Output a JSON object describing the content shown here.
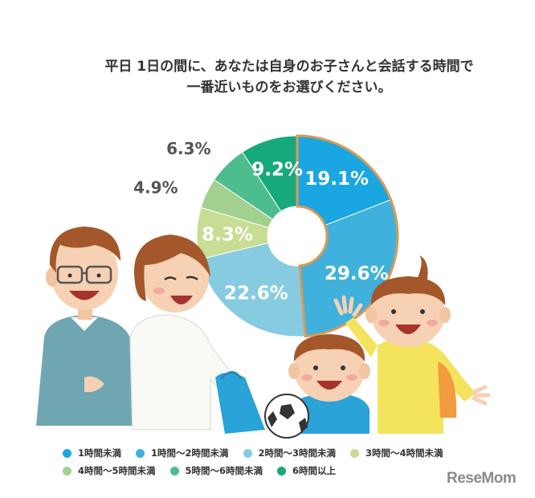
{
  "question": {
    "line1": "平日 1日の間に、あなたは自身のお子さんと会話する時間で",
    "line2": "一番近いものをお選びください。"
  },
  "chart_data": {
    "type": "pie",
    "categories": [
      "1時間未満",
      "1時間～2時間未満",
      "2時間～3時間未満",
      "3時間～4時間未満",
      "4時間～5時間未満",
      "5時間～6時間未満",
      "6時間以上"
    ],
    "values": [
      19.1,
      29.6,
      22.6,
      8.3,
      4.9,
      6.3,
      9.2
    ],
    "value_labels": [
      "19.1%",
      "29.6%",
      "22.6%",
      "8.3%",
      "4.9%",
      "6.3%",
      "9.2%"
    ],
    "colors": [
      "#1aa6e0",
      "#3fb1dc",
      "#87cbe1",
      "#c7dd93",
      "#a2d08f",
      "#4ebd8e",
      "#17a97c"
    ],
    "highlight_color": "#d99a55",
    "donut": true,
    "legend_placement": "bottom"
  },
  "logo": {
    "text": "ReseMom"
  }
}
